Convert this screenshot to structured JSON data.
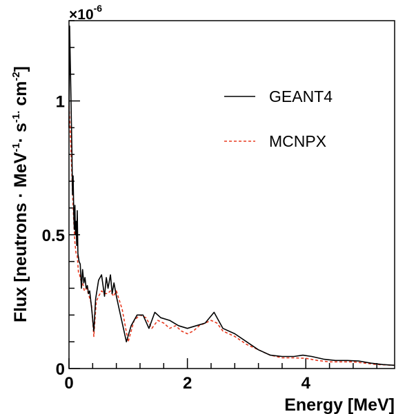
{
  "chart_data": {
    "type": "line",
    "xlabel": "Energy [MeV]",
    "ylabel_parts": {
      "a": "Flux [neutrons · MeV",
      "a_exp": "-1",
      "b": "· s",
      "b_exp": "-1.",
      "c": " cm",
      "c_exp": "-2",
      "d": "]"
    },
    "y_multiplier": {
      "base": "×10",
      "exp": "-6"
    },
    "xlim": [
      0,
      5.5
    ],
    "ylim": [
      0,
      1.3
    ],
    "x_ticks": [
      0,
      2,
      4
    ],
    "x_tick_labels": [
      "0",
      "2",
      "4"
    ],
    "y_ticks": [
      0,
      0.5,
      1
    ],
    "y_tick_labels": [
      "0",
      "0.5",
      "1"
    ],
    "legend_position": "top-right",
    "series": [
      {
        "name": "GEANT4",
        "color": "#000000",
        "dash": "solid",
        "x": [
          0.0,
          0.01,
          0.02,
          0.03,
          0.04,
          0.05,
          0.06,
          0.07,
          0.08,
          0.09,
          0.1,
          0.11,
          0.12,
          0.13,
          0.14,
          0.15,
          0.17,
          0.19,
          0.21,
          0.23,
          0.25,
          0.27,
          0.29,
          0.31,
          0.33,
          0.35,
          0.38,
          0.42,
          0.45,
          0.5,
          0.55,
          0.6,
          0.63,
          0.66,
          0.7,
          0.73,
          0.76,
          0.8,
          0.85,
          0.9,
          0.97,
          1.05,
          1.15,
          1.25,
          1.35,
          1.45,
          1.55,
          1.7,
          1.85,
          2.0,
          2.15,
          2.3,
          2.45,
          2.6,
          2.8,
          3.0,
          3.2,
          3.4,
          3.6,
          3.8,
          3.95,
          4.1,
          4.3,
          4.5,
          4.7,
          4.9,
          5.1,
          5.3,
          5.5
        ],
        "values": [
          0.9,
          1.28,
          1.17,
          1.05,
          0.93,
          0.8,
          0.65,
          0.72,
          0.58,
          0.52,
          0.61,
          0.5,
          0.55,
          0.46,
          0.59,
          0.43,
          0.4,
          0.39,
          0.3,
          0.37,
          0.32,
          0.34,
          0.3,
          0.31,
          0.28,
          0.29,
          0.23,
          0.14,
          0.26,
          0.33,
          0.35,
          0.27,
          0.34,
          0.3,
          0.35,
          0.28,
          0.32,
          0.27,
          0.22,
          0.17,
          0.1,
          0.16,
          0.2,
          0.2,
          0.15,
          0.21,
          0.19,
          0.18,
          0.16,
          0.15,
          0.16,
          0.17,
          0.21,
          0.15,
          0.13,
          0.1,
          0.07,
          0.05,
          0.045,
          0.045,
          0.05,
          0.045,
          0.035,
          0.03,
          0.03,
          0.028,
          0.02,
          0.015,
          0.012
        ]
      },
      {
        "name": "MCNPX",
        "color": "#e8381e",
        "dash": "dashed",
        "x": [
          0.0,
          0.02,
          0.04,
          0.06,
          0.08,
          0.1,
          0.12,
          0.14,
          0.16,
          0.18,
          0.2,
          0.23,
          0.26,
          0.3,
          0.34,
          0.38,
          0.42,
          0.46,
          0.5,
          0.55,
          0.6,
          0.65,
          0.7,
          0.75,
          0.8,
          0.9,
          1.0,
          1.1,
          1.2,
          1.3,
          1.4,
          1.5,
          1.6,
          1.7,
          1.8,
          1.9,
          2.0,
          2.1,
          2.2,
          2.3,
          2.4,
          2.5,
          2.6,
          2.8,
          3.0,
          3.2,
          3.4,
          3.6,
          3.8,
          4.0,
          4.2,
          4.4,
          4.6,
          4.8,
          5.0,
          5.2,
          5.5
        ],
        "values": [
          0.98,
          0.9,
          0.78,
          0.66,
          0.55,
          0.47,
          0.43,
          0.42,
          0.36,
          0.35,
          0.33,
          0.32,
          0.29,
          0.3,
          0.27,
          0.24,
          0.12,
          0.25,
          0.27,
          0.29,
          0.28,
          0.28,
          0.29,
          0.27,
          0.29,
          0.22,
          0.1,
          0.18,
          0.2,
          0.19,
          0.15,
          0.18,
          0.17,
          0.15,
          0.16,
          0.14,
          0.13,
          0.14,
          0.16,
          0.17,
          0.18,
          0.17,
          0.14,
          0.12,
          0.09,
          0.07,
          0.05,
          0.04,
          0.04,
          0.038,
          0.03,
          0.025,
          0.025,
          0.025,
          0.02,
          0.015,
          0.012
        ]
      }
    ]
  }
}
